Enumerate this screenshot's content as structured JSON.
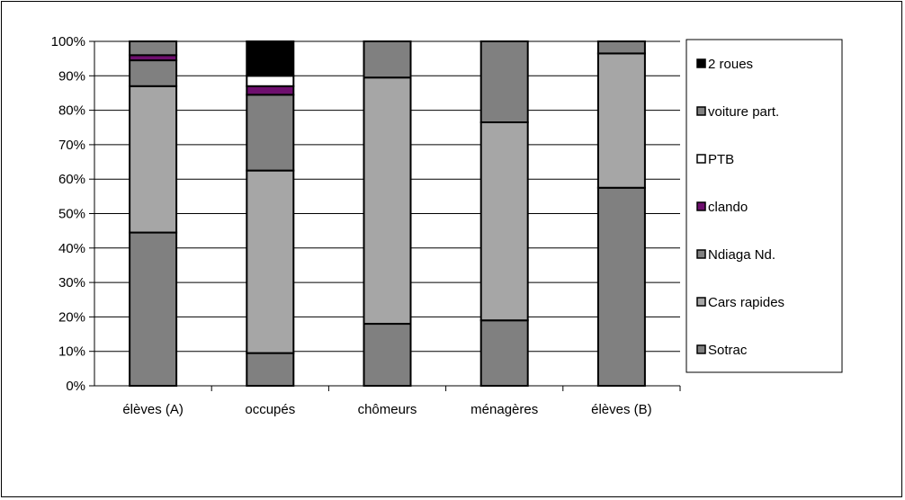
{
  "chart_data": {
    "type": "bar",
    "stacked": true,
    "normalized_percent": true,
    "title": "",
    "xlabel": "",
    "ylabel": "",
    "ylim": [
      0,
      100
    ],
    "y_ticks": [
      "0%",
      "10%",
      "20%",
      "30%",
      "40%",
      "50%",
      "60%",
      "70%",
      "80%",
      "90%",
      "100%"
    ],
    "grid": "horizontal",
    "legend_position": "right",
    "categories": [
      "élèves (A)",
      "occupés",
      "chômeurs",
      "ménagères",
      "élèves (B)"
    ],
    "series": [
      {
        "name": "Sotrac",
        "color": "#808080",
        "values": [
          44.5,
          9.5,
          18,
          19,
          57.5
        ]
      },
      {
        "name": "Cars rapides",
        "color": "#a6a6a6",
        "values": [
          42.5,
          53,
          71.5,
          57.5,
          39
        ]
      },
      {
        "name": "Ndiaga Nd.",
        "color": "#808080",
        "values": [
          7.5,
          22,
          10.5,
          23.5,
          3.5
        ]
      },
      {
        "name": "clando",
        "color": "#6e0f6e",
        "values": [
          1.5,
          2.5,
          0,
          0,
          0
        ]
      },
      {
        "name": "PTB",
        "color": "#ffffff",
        "values": [
          0,
          3,
          0,
          0,
          0
        ]
      },
      {
        "name": "voiture part.",
        "color": "#808080",
        "values": [
          4,
          0,
          0,
          0,
          0
        ]
      },
      {
        "name": "2 roues",
        "color": "#000000",
        "values": [
          0,
          10,
          0,
          0,
          0
        ]
      }
    ]
  }
}
